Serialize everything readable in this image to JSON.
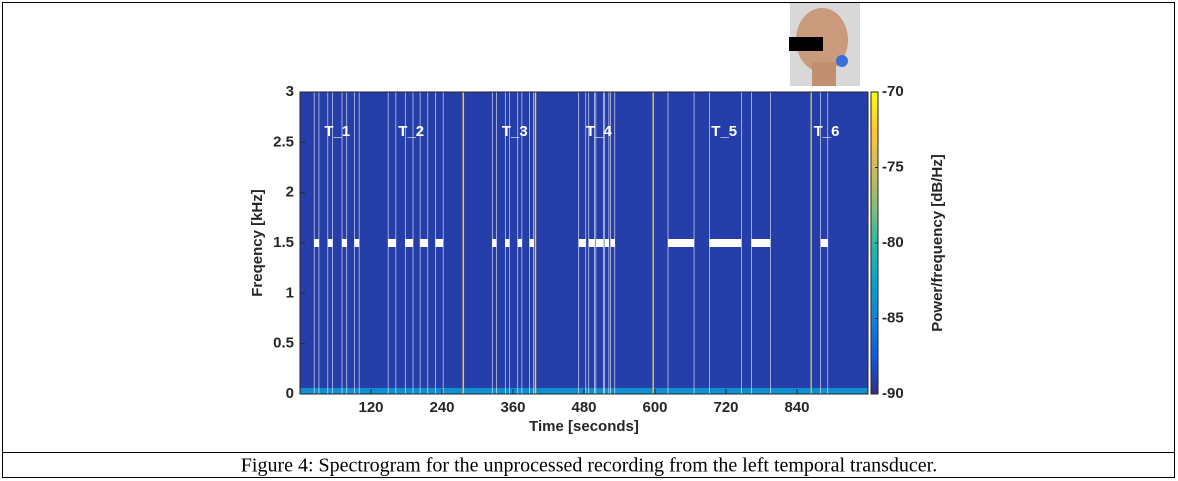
{
  "chart_data": {
    "type": "spectrogram",
    "caption": "Figure 4: Spectrogram for the unprocessed recording from the left temporal transducer.",
    "xlabel": "Time [seconds]",
    "ylabel": "Freqency [kHz]",
    "colorbar_label": "Power/frequency [dB/Hz]",
    "xlim": [
      0,
      960
    ],
    "xticks": [
      120,
      240,
      360,
      480,
      600,
      720,
      840
    ],
    "ylim": [
      0,
      3
    ],
    "yticks": [
      0,
      0.5,
      1,
      1.5,
      2,
      2.5,
      3
    ],
    "clim": [
      -90,
      -70
    ],
    "cticks": [
      -70,
      -75,
      -80,
      -85,
      -90
    ],
    "colormap": [
      "#352a87",
      "#0f5cdd",
      "#1481d6",
      "#06a4ca",
      "#2eb7a4",
      "#87bf77",
      "#d1bb59",
      "#fec832",
      "#f9fb0e"
    ],
    "background_level": -89,
    "floor_level": -84,
    "floor_freq": 0.06,
    "event_freq": 1.5,
    "events": [
      [
        24,
        32
      ],
      [
        47,
        55
      ],
      [
        71,
        79
      ],
      [
        92,
        100
      ],
      [
        149,
        162
      ],
      [
        178,
        191
      ],
      [
        203,
        216
      ],
      [
        229,
        242
      ],
      [
        325,
        332
      ],
      [
        347,
        354
      ],
      [
        368,
        375
      ],
      [
        388,
        395
      ],
      [
        471,
        483
      ],
      [
        488,
        498
      ],
      [
        500,
        513
      ],
      [
        515,
        522
      ],
      [
        525,
        532
      ],
      [
        622,
        666
      ],
      [
        692,
        746
      ],
      [
        763,
        795
      ],
      [
        880,
        892
      ]
    ],
    "trials": [
      {
        "label": "T_1",
        "time": 63,
        "freq": 2.6
      },
      {
        "label": "T_2",
        "time": 188,
        "freq": 2.6
      },
      {
        "label": "T_3",
        "time": 363,
        "freq": 2.6
      },
      {
        "label": "T_4",
        "time": 505,
        "freq": 2.6
      },
      {
        "label": "T_5",
        "time": 717,
        "freq": 2.6
      },
      {
        "label": "T_6",
        "time": 890,
        "freq": 2.6
      }
    ],
    "transients": [
      {
        "time": 276,
        "level": -73
      },
      {
        "time": 398,
        "level": -73
      },
      {
        "time": 597,
        "level": -74
      },
      {
        "time": 864,
        "level": -76
      }
    ]
  }
}
